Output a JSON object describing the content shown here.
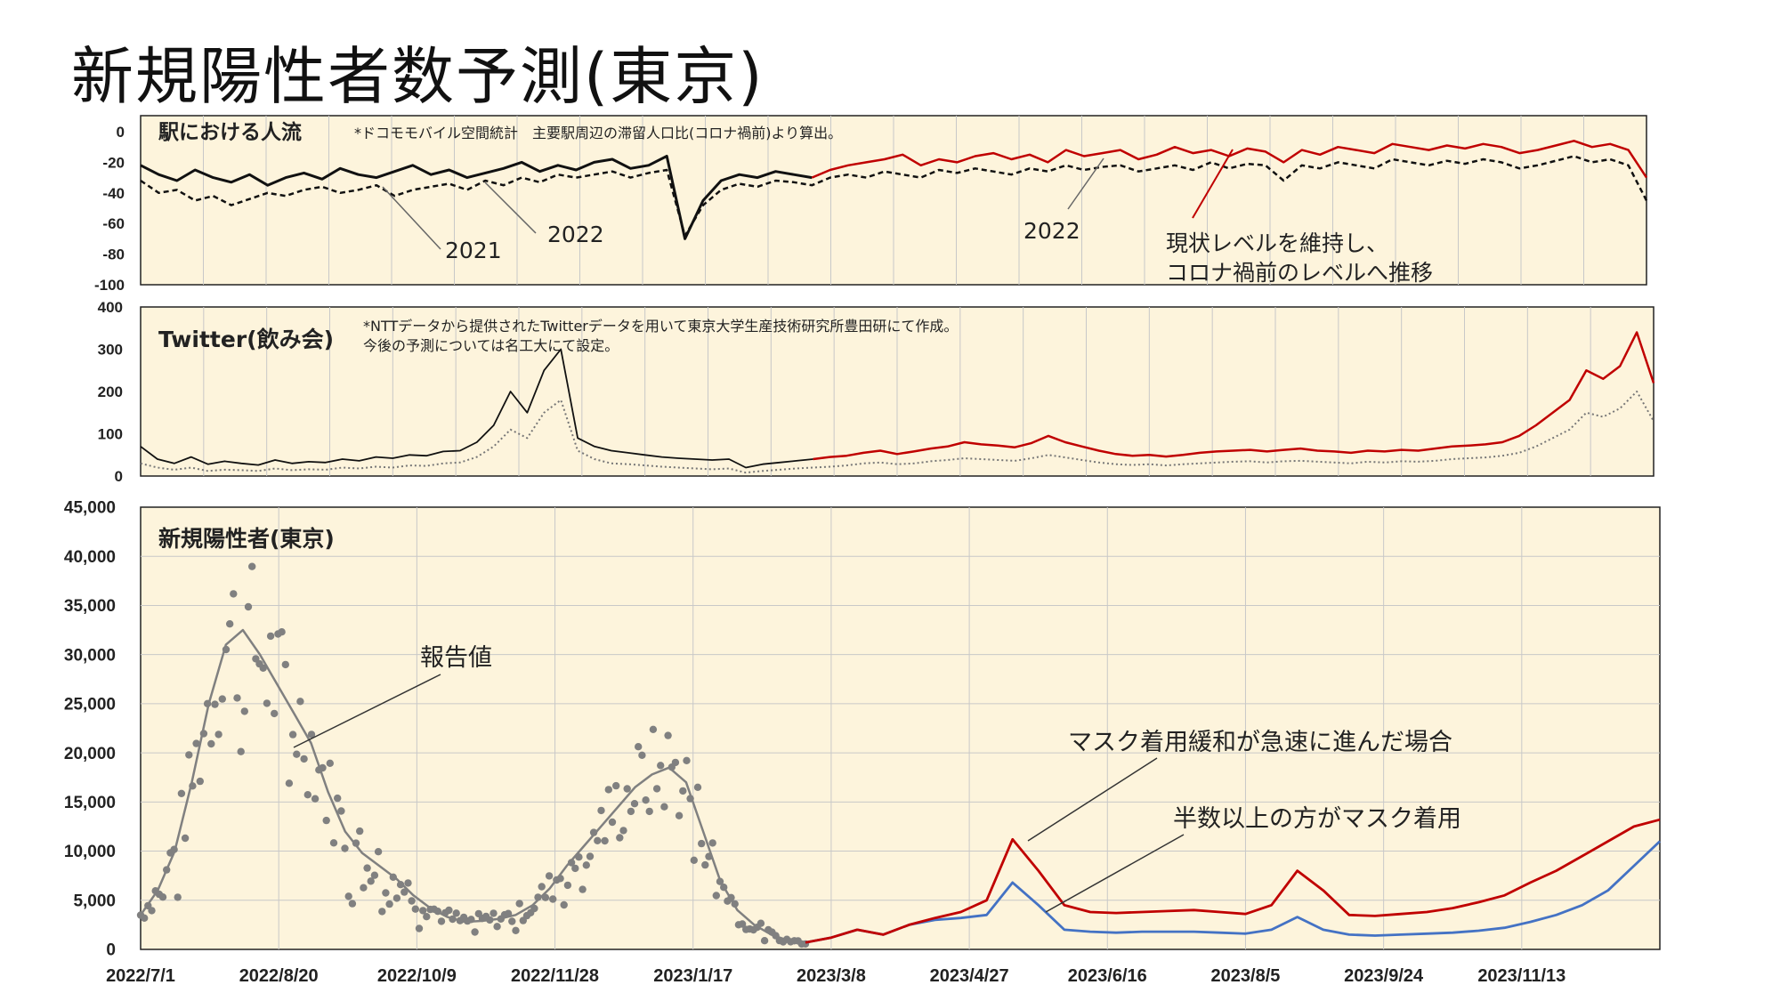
{
  "title": "新規陽性者数予測(東京)",
  "colors": {
    "panel_bg": "#fdf4dc",
    "grid": "#c8c8c8",
    "observed": "#111111",
    "forecast_red": "#c00000",
    "forecast_blue": "#4472c4",
    "dots": "#808080",
    "observed_line": "#808080"
  },
  "chart_data": [
    {
      "type": "line",
      "title": "駅における人流",
      "note": "*ドコモモバイル空間統計　主要駅周辺の滞留人口比(コロナ禍前)より算出。",
      "ylim": [
        -100,
        0
      ],
      "yticks": [
        "0",
        "-20",
        "-40",
        "-60",
        "-80",
        "-100"
      ],
      "series": [
        {
          "name": "2022",
          "style": "solid",
          "values": [
            -22,
            -28,
            -32,
            -25,
            -30,
            -33,
            -28,
            -35,
            -30,
            -27,
            -31,
            -24,
            -28,
            -30,
            -26,
            -22,
            -28,
            -25,
            -30,
            -27,
            -24,
            -20,
            -26,
            -22,
            -25,
            -20,
            -18,
            -24,
            -22,
            -16,
            -70,
            -45,
            -32,
            -28,
            -30,
            -26,
            -28,
            -30,
            -25,
            -22,
            -20,
            -18,
            -15,
            -22,
            -18,
            -20,
            -16,
            -14,
            -18,
            -15,
            -20,
            -12,
            -16,
            -14,
            -12,
            -18,
            -15,
            -10,
            -14,
            -12,
            -16,
            -11,
            -13,
            -20,
            -12,
            -15,
            -10,
            -12,
            -14,
            -8,
            -10,
            -12,
            -9,
            -11,
            -8,
            -10,
            -14,
            -12,
            -9,
            -6,
            -10,
            -8,
            -12,
            -30
          ]
        },
        {
          "name": "",
          "style": "dashed",
          "values": [
            -32,
            -40,
            -38,
            -45,
            -42,
            -48,
            -44,
            -40,
            -42,
            -38,
            -36,
            -40,
            -38,
            -35,
            -42,
            -38,
            -36,
            -34,
            -38,
            -32,
            -35,
            -30,
            -33,
            -28,
            -30,
            -28,
            -26,
            -30,
            -27,
            -25,
            -68,
            -48,
            -38,
            -34,
            -36,
            -32,
            -33,
            -35,
            -30,
            -28,
            -30,
            -26,
            -28,
            -30,
            -25,
            -27,
            -24,
            -26,
            -28,
            -24,
            -26,
            -22,
            -25,
            -23,
            -22,
            -26,
            -24,
            -22,
            -25,
            -20,
            -24,
            -21,
            -22,
            -32,
            -22,
            -24,
            -20,
            -22,
            -24,
            -18,
            -20,
            -22,
            -19,
            -21,
            -18,
            -20,
            -24,
            -22,
            -19,
            -16,
            -20,
            -18,
            -22,
            -45
          ]
        }
      ],
      "annotations": [
        "2021",
        "2022",
        "2022",
        "現状レベルを維持し、",
        "コロナ禍前のレベルへ推移"
      ]
    },
    {
      "type": "line",
      "title": "Twitter(飲み会)",
      "note": [
        "*NTTデータから提供されたTwitterデータを用いて東京大学生産技術研究所豊田研にて作成。",
        "今後の予測については名工大にて設定。"
      ],
      "ylim": [
        0,
        400
      ],
      "yticks": [
        "400",
        "300",
        "200",
        "100",
        "0"
      ],
      "series": [
        {
          "name": "",
          "style": "solid",
          "values": [
            70,
            40,
            30,
            45,
            28,
            35,
            30,
            26,
            38,
            30,
            34,
            32,
            40,
            36,
            45,
            42,
            50,
            48,
            58,
            60,
            80,
            120,
            200,
            150,
            250,
            300,
            90,
            70,
            60,
            55,
            50,
            45,
            42,
            40,
            38,
            40,
            20,
            28,
            32,
            36,
            40,
            45,
            48,
            55,
            60,
            52,
            58,
            65,
            70,
            80,
            75,
            72,
            68,
            78,
            95,
            80,
            70,
            60,
            52,
            48,
            50,
            46,
            50,
            55,
            58,
            60,
            62,
            58,
            62,
            65,
            60,
            58,
            55,
            60,
            58,
            62,
            60,
            65,
            70,
            72,
            75,
            80,
            95,
            120,
            150,
            180,
            250,
            230,
            260,
            340,
            220
          ]
        },
        {
          "name": "",
          "style": "dotted",
          "values": [
            30,
            20,
            15,
            20,
            12,
            15,
            14,
            12,
            18,
            14,
            16,
            15,
            20,
            18,
            22,
            20,
            25,
            24,
            30,
            32,
            45,
            70,
            110,
            90,
            150,
            180,
            60,
            40,
            30,
            28,
            25,
            22,
            20,
            18,
            16,
            18,
            8,
            12,
            15,
            18,
            20,
            22,
            25,
            30,
            32,
            28,
            30,
            35,
            38,
            42,
            40,
            38,
            36,
            42,
            50,
            44,
            38,
            32,
            28,
            26,
            28,
            25,
            28,
            30,
            32,
            34,
            35,
            32,
            35,
            36,
            34,
            32,
            30,
            34,
            32,
            35,
            34,
            36,
            40,
            42,
            44,
            48,
            55,
            70,
            90,
            110,
            150,
            140,
            160,
            200,
            130
          ]
        }
      ]
    },
    {
      "type": "line",
      "title": "新規陽性者(東京)",
      "ylim": [
        0,
        45000
      ],
      "yticks": [
        "45,000",
        "40,000",
        "35,000",
        "30,000",
        "25,000",
        "20,000",
        "15,000",
        "10,000",
        "5,000",
        "0"
      ],
      "x_tick_labels": [
        "2022/7/1",
        "2022/8/20",
        "2022/10/9",
        "2022/11/28",
        "2023/1/17",
        "2023/3/8",
        "2023/4/27",
        "2023/6/16",
        "2023/8/5",
        "2023/9/24",
        "2023/11/13"
      ],
      "series": [
        {
          "name": "報告値",
          "style": "line",
          "values": [
            3500,
            6000,
            10000,
            17000,
            25000,
            31000,
            32500,
            30000,
            27000,
            24000,
            21000,
            16000,
            12000,
            9800,
            8500,
            7200,
            5500,
            4200,
            3300,
            2800,
            2900,
            3100,
            3500,
            4500,
            6200,
            8500,
            10500,
            12500,
            14500,
            16500,
            17800,
            18500,
            17000,
            12000,
            7000,
            4000,
            2500,
            1500,
            900,
            700
          ]
        },
        {
          "name": "マスク着用緩和が急速に進んだ場合",
          "style": "line",
          "values": [
            700,
            1200,
            2000,
            1500,
            2500,
            3200,
            3800,
            5000,
            11200,
            8000,
            4500,
            3800,
            3700,
            3800,
            3900,
            4000,
            3800,
            3600,
            4500,
            8000,
            6000,
            3500,
            3400,
            3600,
            3800,
            4200,
            4800,
            5500,
            6800,
            8000,
            9500,
            11000,
            12500,
            13200
          ]
        },
        {
          "name": "半数以上の方がマスク着用",
          "style": "line",
          "values": [
            700,
            1200,
            2000,
            1500,
            2500,
            3000,
            3200,
            3500,
            6800,
            4500,
            2000,
            1800,
            1700,
            1800,
            1800,
            1800,
            1700,
            1600,
            2000,
            3300,
            2000,
            1500,
            1400,
            1500,
            1600,
            1700,
            1900,
            2200,
            2800,
            3500,
            4500,
            6000,
            8500,
            11000
          ]
        }
      ],
      "annotations": [
        "報告値",
        "マスク着用緩和が急速に進んだ場合",
        "半数以上の方がマスク着用"
      ]
    }
  ]
}
